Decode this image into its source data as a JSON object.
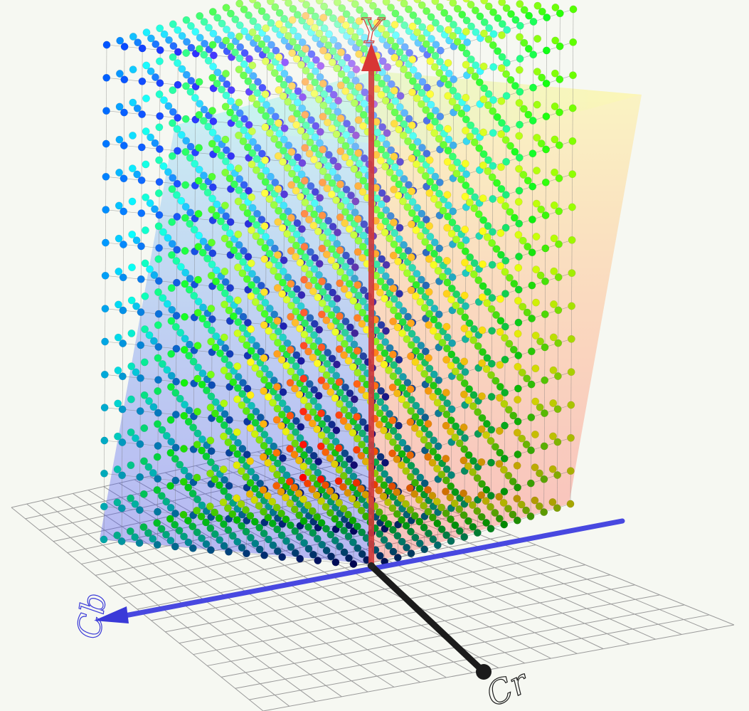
{
  "scene": {
    "type": "3d-color-cube-plot",
    "grid_divisions": 18,
    "cube_points_per_edge": 16,
    "plane_grid": true
  },
  "axes": {
    "vertical": {
      "label": "Y",
      "color": "#d23a3a"
    },
    "left": {
      "label": "Cb",
      "color": "#3a3ad8"
    },
    "front": {
      "label": "Cr",
      "color": "#1b1b1b"
    }
  },
  "colors": {
    "background": "#f6f8f2",
    "grid_line": "#9a9a9a",
    "cube_edge": "#6f6f6f"
  }
}
